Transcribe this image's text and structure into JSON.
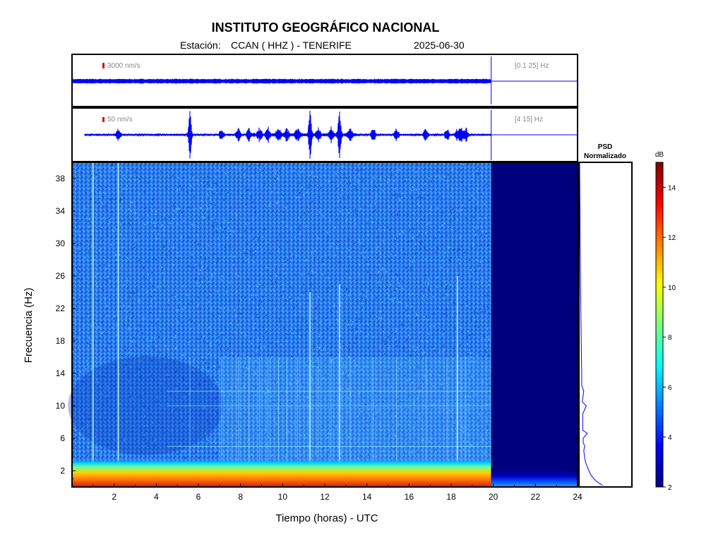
{
  "colors": {
    "trace": "#0000ff",
    "scale_marker": "#dd0000",
    "frame": "#000000",
    "band_label": "#888888",
    "no_data": "#00007f"
  },
  "chart_data": [
    {
      "type": "line",
      "title": "INSTITUTO GEOGRÁFICO NACIONAL",
      "subtitle": {
        "station_label": "Estación:",
        "station_value": "CCAN ( HHZ ) - TENERIFE",
        "date": "2025-06-30"
      },
      "panel": "broadband seismogram",
      "scale_label": "3000 nm/s",
      "band_label": "[0.1 25] Hz",
      "xlim": [
        0,
        24
      ],
      "data_end_hour": 19.9,
      "series": [
        {
          "values": [
            [
              0.0,
              0
            ],
            [
              0.5,
              0
            ],
            [
              1.0,
              0
            ],
            [
              1.5,
              0
            ],
            [
              2.0,
              0
            ],
            [
              2.5,
              0
            ],
            [
              3.0,
              0
            ],
            [
              3.5,
              0
            ],
            [
              4.0,
              0
            ],
            [
              4.5,
              0
            ],
            [
              5.0,
              0
            ],
            [
              5.5,
              0
            ],
            [
              6.0,
              0
            ],
            [
              6.5,
              0
            ],
            [
              7.0,
              0
            ],
            [
              7.5,
              0
            ],
            [
              8.0,
              0
            ],
            [
              8.5,
              0
            ],
            [
              9.0,
              0
            ],
            [
              9.5,
              0
            ],
            [
              10.0,
              0
            ],
            [
              10.5,
              0
            ],
            [
              11.0,
              0
            ],
            [
              11.5,
              0
            ],
            [
              12.0,
              0
            ],
            [
              12.5,
              0
            ],
            [
              13.0,
              0
            ],
            [
              13.5,
              0
            ],
            [
              14.0,
              0
            ],
            [
              14.5,
              0
            ],
            [
              15.0,
              0
            ],
            [
              15.5,
              0
            ],
            [
              16.0,
              0
            ],
            [
              16.5,
              0
            ],
            [
              17.0,
              0
            ],
            [
              17.5,
              0
            ],
            [
              18.0,
              0
            ],
            [
              18.5,
              0
            ],
            [
              19.0,
              0
            ],
            [
              19.5,
              0
            ],
            [
              19.9,
              0
            ]
          ]
        }
      ]
    },
    {
      "type": "line",
      "panel": "filtered seismogram",
      "scale_label": "50 nm/s",
      "band_label": "[4 15] Hz",
      "xlim": [
        0,
        24
      ],
      "data_end_hour": 19.9,
      "events_hours": [
        2.2,
        5.6,
        7.1,
        7.9,
        8.4,
        8.9,
        9.3,
        9.8,
        10.2,
        10.7,
        11.3,
        11.7,
        12.3,
        12.7,
        13.2,
        14.3,
        15.4,
        16.8,
        17.8,
        18.3,
        18.5,
        18.7
      ]
    },
    {
      "type": "heatmap",
      "panel": "spectrogram",
      "xlabel": "Tiempo (horas) - UTC",
      "ylabel": "Frecuencia  (Hz)",
      "xlim": [
        0,
        24
      ],
      "ylim": [
        0,
        40
      ],
      "xticks": [
        "2",
        "4",
        "6",
        "8",
        "10",
        "12",
        "14",
        "16",
        "18",
        "20",
        "22",
        "24"
      ],
      "yticks": [
        "2",
        "6",
        "10",
        "14",
        "18",
        "22",
        "26",
        "30",
        "34",
        "38"
      ],
      "data_end_hour": 19.9,
      "bright_vertical_lines_hours": [
        1.0,
        2.2,
        11.3,
        12.7,
        18.3
      ],
      "horizontal_lines_hz": [
        5.0,
        10.0,
        11.8
      ],
      "low_freq_band_hz": [
        0,
        2.5
      ]
    },
    {
      "type": "line",
      "panel": "psd",
      "title": "PSD\nNormalizado",
      "title_lines": [
        "PSD",
        "Normalizado"
      ],
      "ylim": [
        0,
        40
      ],
      "psd_points": [
        [
          0.2,
          0.45
        ],
        [
          0.6,
          0.35
        ],
        [
          1.0,
          0.28
        ],
        [
          1.5,
          0.22
        ],
        [
          2.0,
          0.18
        ],
        [
          2.5,
          0.15
        ],
        [
          3.0,
          0.12
        ],
        [
          3.5,
          0.1
        ],
        [
          4.0,
          0.09
        ],
        [
          4.5,
          0.08
        ],
        [
          5.0,
          0.1
        ],
        [
          5.5,
          0.07
        ],
        [
          6.0,
          0.07
        ],
        [
          6.6,
          0.15
        ],
        [
          7.0,
          0.06
        ],
        [
          8.0,
          0.06
        ],
        [
          9.0,
          0.06
        ],
        [
          10.0,
          0.13
        ],
        [
          10.5,
          0.05
        ],
        [
          11.8,
          0.08
        ],
        [
          12.5,
          0.04
        ],
        [
          14.0,
          0.04
        ],
        [
          18.0,
          0.03
        ],
        [
          24.0,
          0.02
        ],
        [
          30.0,
          0.01
        ],
        [
          40.0,
          0.0
        ]
      ]
    },
    {
      "type": "heatmap",
      "panel": "colorbar",
      "label": "dB",
      "range": [
        2,
        15
      ],
      "ticks": [
        "2",
        "4",
        "6",
        "8",
        "10",
        "12",
        "14"
      ],
      "colormap": [
        "#00007f",
        "#0000ff",
        "#007fff",
        "#00ffff",
        "#7fff7f",
        "#ffff00",
        "#ff7f00",
        "#ff0000",
        "#7f0000"
      ]
    }
  ]
}
